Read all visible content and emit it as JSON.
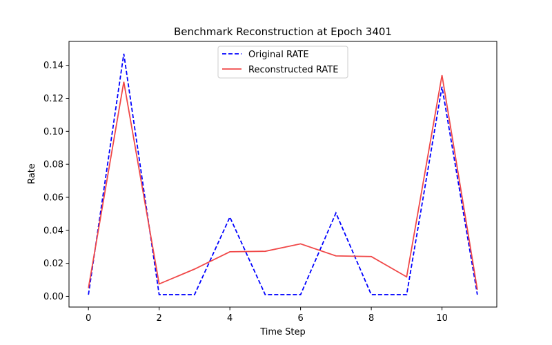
{
  "chart_data": {
    "type": "line",
    "title": "Benchmark Reconstruction at Epoch 3401",
    "xlabel": "Time Step",
    "ylabel": "Rate",
    "xlim": [
      -0.55,
      11.55
    ],
    "ylim": [
      -0.0065,
      0.1545
    ],
    "xticks": [
      0,
      2,
      4,
      6,
      8,
      10
    ],
    "xtick_labels": [
      "0",
      "2",
      "4",
      "6",
      "8",
      "10"
    ],
    "yticks": [
      0.0,
      0.02,
      0.04,
      0.06,
      0.08,
      0.1,
      0.12,
      0.14
    ],
    "ytick_labels": [
      "0.00",
      "0.02",
      "0.04",
      "0.06",
      "0.08",
      "0.10",
      "0.12",
      "0.14"
    ],
    "grid": false,
    "legend_position": "upper-center",
    "x": [
      0,
      1,
      2,
      3,
      4,
      5,
      6,
      7,
      8,
      9,
      10,
      11
    ],
    "series": [
      {
        "name": "Original RATE",
        "color": "#0000ff",
        "style": "dashed",
        "values": [
          0.001,
          0.147,
          0.001,
          0.001,
          0.048,
          0.001,
          0.001,
          0.0505,
          0.001,
          0.001,
          0.127,
          0.001
        ]
      },
      {
        "name": "Reconstructed RATE",
        "color": "#f04848",
        "style": "solid",
        "values": [
          0.005,
          0.13,
          0.0075,
          0.0165,
          0.027,
          0.0273,
          0.0318,
          0.0245,
          0.0241,
          0.0118,
          0.134,
          0.004
        ]
      }
    ]
  }
}
